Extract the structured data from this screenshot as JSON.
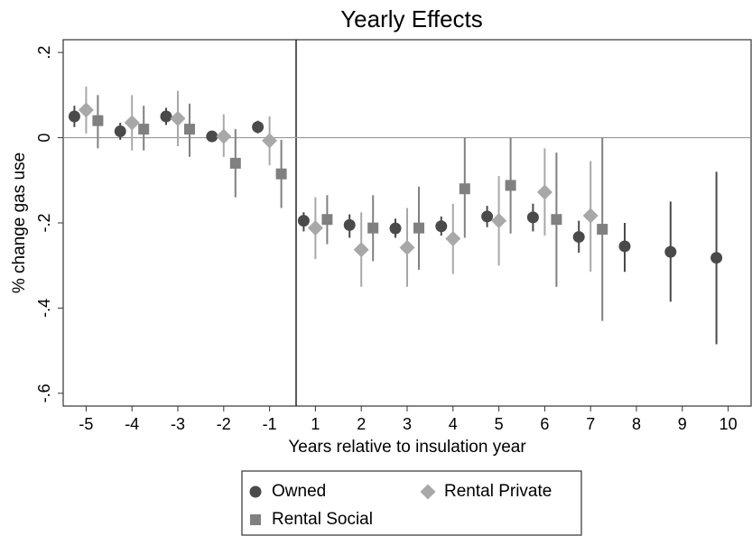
{
  "chart_data": {
    "type": "errorbar",
    "title": "Yearly Effects",
    "x_label": "Years relative to insulation year",
    "y_label": "% change gas use",
    "categories": [
      "-5",
      "-4",
      "-3",
      "-2",
      "-1",
      "1",
      "2",
      "3",
      "4",
      "5",
      "6",
      "7",
      "8",
      "9",
      "10"
    ],
    "ylim": [
      -0.63,
      0.23
    ],
    "yticks": [
      {
        "value": 0.2,
        "label": ".2"
      },
      0,
      {
        "value": -0.2,
        "label": "-.2"
      },
      {
        "value": -0.4,
        "label": "-.4"
      },
      {
        "value": -0.6,
        "label": "-.6"
      }
    ],
    "yline": 0,
    "series": [
      {
        "name": "Owned",
        "color": "#4a4a4a",
        "marker": "circle",
        "values": [
          0.05,
          0.015,
          0.05,
          0.003,
          0.025,
          -0.195,
          -0.205,
          -0.213,
          -0.208,
          -0.185,
          -0.187,
          -0.233,
          -0.255,
          -0.268,
          -0.282
        ],
        "lower": [
          0.025,
          -0.005,
          0.03,
          -0.01,
          0.01,
          -0.22,
          -0.235,
          -0.235,
          -0.23,
          -0.21,
          -0.22,
          -0.27,
          -0.315,
          -0.385,
          -0.485
        ],
        "upper": [
          0.075,
          0.035,
          0.07,
          0.015,
          0.04,
          -0.175,
          -0.18,
          -0.19,
          -0.185,
          -0.16,
          -0.155,
          -0.195,
          -0.2,
          -0.15,
          -0.08
        ]
      },
      {
        "name": "Rental Private",
        "color": "#a8a8a8",
        "marker": "diamond",
        "values": [
          0.065,
          0.035,
          0.045,
          0.003,
          -0.007,
          -0.212,
          -0.263,
          -0.258,
          -0.237,
          -0.195,
          -0.128,
          -0.183,
          null,
          null,
          null
        ],
        "lower": [
          0.01,
          -0.03,
          -0.02,
          -0.045,
          -0.065,
          -0.285,
          -0.35,
          -0.35,
          -0.32,
          -0.3,
          -0.23,
          -0.315,
          null,
          null,
          null
        ],
        "upper": [
          0.12,
          0.1,
          0.11,
          0.055,
          0.05,
          -0.14,
          -0.175,
          -0.165,
          -0.155,
          -0.09,
          -0.025,
          -0.055,
          null,
          null,
          null
        ]
      },
      {
        "name": "Rental Social",
        "color": "#808080",
        "marker": "square",
        "values": [
          0.04,
          0.02,
          0.02,
          -0.06,
          -0.085,
          -0.192,
          -0.212,
          -0.212,
          -0.12,
          -0.112,
          -0.192,
          -0.215,
          null,
          null,
          null
        ],
        "lower": [
          -0.025,
          -0.03,
          -0.045,
          -0.14,
          -0.165,
          -0.25,
          -0.29,
          -0.31,
          -0.235,
          -0.225,
          -0.35,
          -0.43,
          null,
          null,
          null
        ],
        "upper": [
          0.1,
          0.075,
          0.08,
          0.02,
          -0.005,
          -0.135,
          -0.135,
          -0.115,
          0,
          0,
          -0.035,
          0,
          null,
          null,
          null
        ]
      }
    ]
  }
}
